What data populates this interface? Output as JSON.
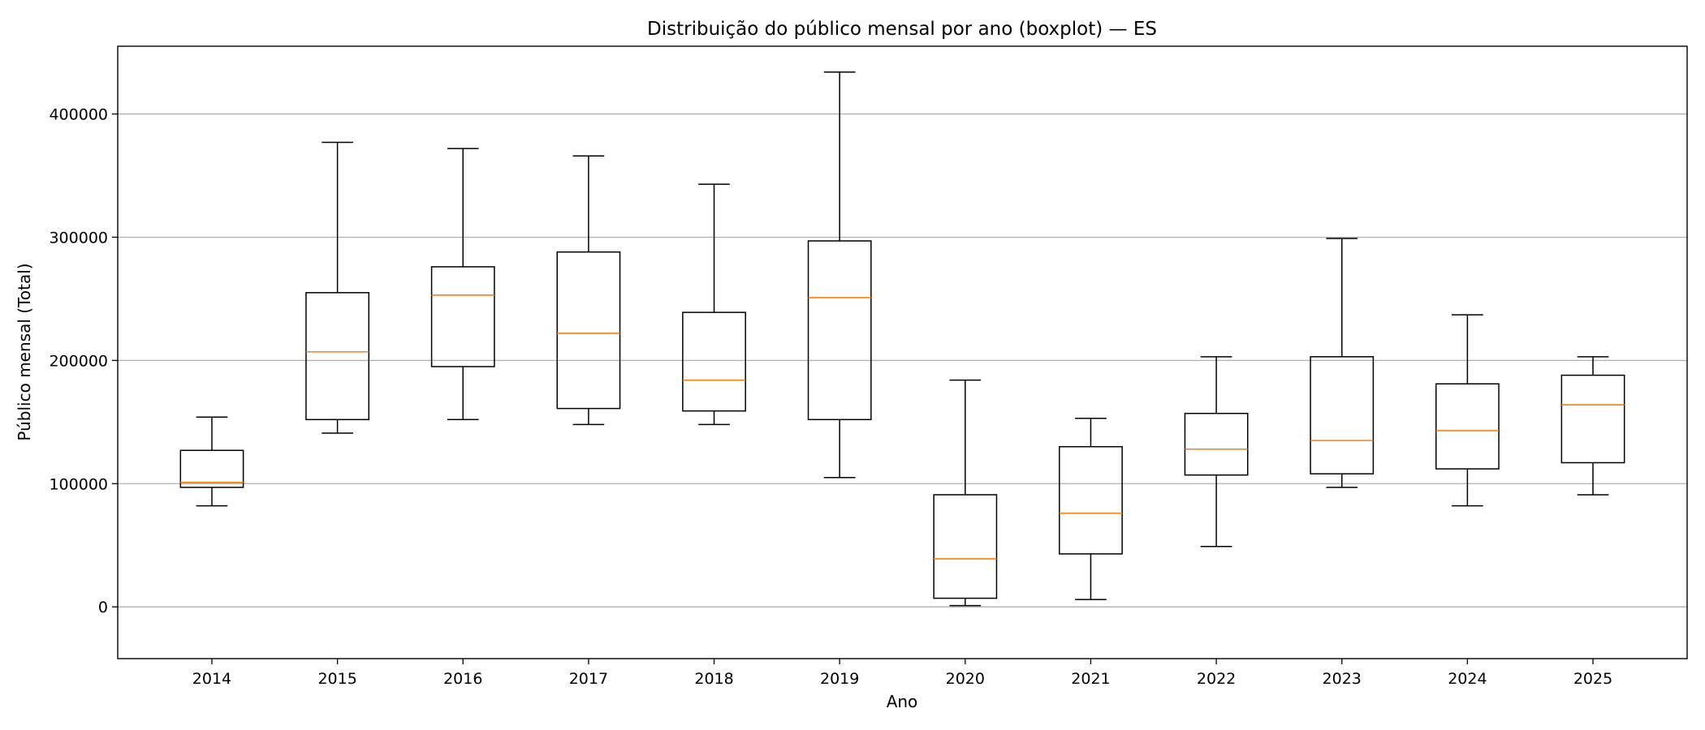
{
  "chart_data": {
    "type": "boxplot",
    "title": "Distribuição do público mensal por ano (boxplot) — ES",
    "xlabel": "Ano",
    "ylabel": "Público mensal (Total)",
    "ylim": [
      -42000,
      455000
    ],
    "yticks": [
      0,
      100000,
      200000,
      300000,
      400000
    ],
    "ytick_labels": [
      "0",
      "100000",
      "200000",
      "300000",
      "400000"
    ],
    "grid": "y",
    "colors": {
      "box": "#000000",
      "median": "#ff7f0e",
      "grid": "#b0b0b0"
    },
    "categories": [
      "2014",
      "2015",
      "2016",
      "2017",
      "2018",
      "2019",
      "2020",
      "2021",
      "2022",
      "2023",
      "2024",
      "2025"
    ],
    "boxes": [
      {
        "whisker_low": 82000,
        "q1": 97000,
        "median": 101000,
        "q3": 127000,
        "whisker_high": 154000
      },
      {
        "whisker_low": 141000,
        "q1": 152000,
        "median": 207000,
        "q3": 255000,
        "whisker_high": 377000
      },
      {
        "whisker_low": 152000,
        "q1": 195000,
        "median": 253000,
        "q3": 276000,
        "whisker_high": 372000
      },
      {
        "whisker_low": 148000,
        "q1": 161000,
        "median": 222000,
        "q3": 288000,
        "whisker_high": 366000
      },
      {
        "whisker_low": 148000,
        "q1": 159000,
        "median": 184000,
        "q3": 239000,
        "whisker_high": 343000
      },
      {
        "whisker_low": 105000,
        "q1": 152000,
        "median": 251000,
        "q3": 297000,
        "whisker_high": 434000
      },
      {
        "whisker_low": 1000,
        "q1": 7000,
        "median": 39000,
        "q3": 91000,
        "whisker_high": 184000
      },
      {
        "whisker_low": 6000,
        "q1": 43000,
        "median": 76000,
        "q3": 130000,
        "whisker_high": 153000
      },
      {
        "whisker_low": 49000,
        "q1": 107000,
        "median": 128000,
        "q3": 157000,
        "whisker_high": 203000
      },
      {
        "whisker_low": 97000,
        "q1": 108000,
        "median": 135000,
        "q3": 203000,
        "whisker_high": 299000
      },
      {
        "whisker_low": 82000,
        "q1": 112000,
        "median": 143000,
        "q3": 181000,
        "whisker_high": 237000
      },
      {
        "whisker_low": 91000,
        "q1": 117000,
        "median": 164000,
        "q3": 188000,
        "whisker_high": 203000
      }
    ]
  }
}
